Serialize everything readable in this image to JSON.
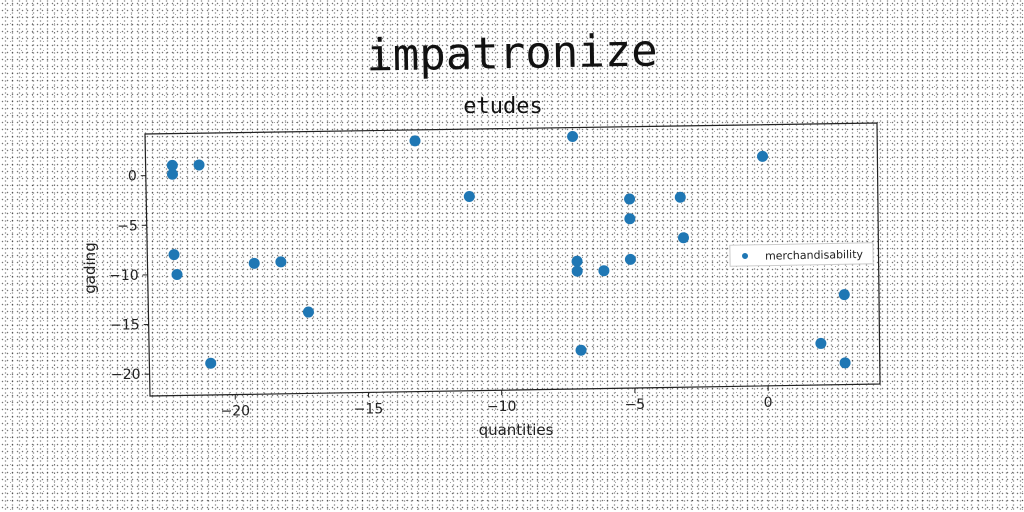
{
  "title": "impatronize",
  "chart_data": {
    "type": "scatter",
    "title": "etudes",
    "xlabel": "quantities",
    "ylabel": "gading",
    "xlim": [
      -23.2,
      4.2
    ],
    "ylim": [
      -22.2,
      4.2
    ],
    "xticks": [
      -20,
      -15,
      -10,
      -5,
      0
    ],
    "yticks": [
      0,
      -5,
      -10,
      -15,
      -20
    ],
    "xtick_labels": [
      "−20",
      "−15",
      "−10",
      "−5",
      "0"
    ],
    "ytick_labels": [
      "0",
      "−5",
      "−10",
      "−15",
      "−20"
    ],
    "grid": false,
    "legend_position": "center-right",
    "color": "#1f77b4",
    "series": [
      {
        "name": "merchandisability",
        "x": [
          -22.2,
          -22.2,
          -21.2,
          -22.2,
          -22.1,
          -20.9,
          -19.2,
          -18.2,
          -17.2,
          -13.1,
          -11.1,
          -7.2,
          -7.1,
          -7.1,
          -7.0,
          -6.1,
          -5.1,
          -5.1,
          -5.1,
          -3.2,
          -3.1,
          -0.1,
          2.0,
          2.9,
          2.9
        ],
        "y": [
          1.0,
          0.1,
          1.0,
          -8.0,
          -10.0,
          -19.0,
          -9.0,
          -8.9,
          -14.0,
          3.1,
          -2.6,
          3.3,
          -9.3,
          -10.3,
          -18.3,
          -10.3,
          -3.1,
          -5.1,
          -9.2,
          -3.0,
          -7.1,
          1.0,
          -18.0,
          -13.1,
          -20.0
        ]
      }
    ]
  }
}
